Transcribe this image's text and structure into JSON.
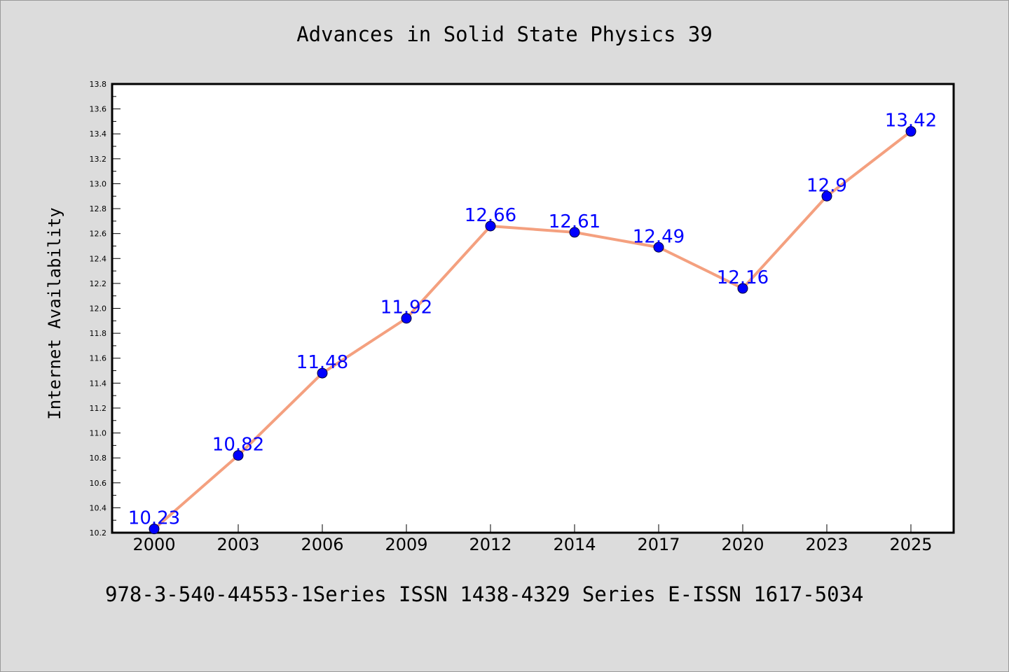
{
  "chart_data": {
    "type": "line",
    "title": "Advances in Solid State Physics 39",
    "xlabel": "",
    "ylabel": "Internet Availability",
    "categories": [
      "2000",
      "2003",
      "2006",
      "2009",
      "2012",
      "2014",
      "2017",
      "2020",
      "2023",
      "2025"
    ],
    "series": [
      {
        "values": [
          10.23,
          10.82,
          11.48,
          11.92,
          12.66,
          12.61,
          12.49,
          12.16,
          12.9,
          13.42
        ],
        "labels": [
          "10.23",
          "10.82",
          "11.48",
          "11.92",
          "12.66",
          "12.61",
          "12.49",
          "12.16",
          "12.9",
          "13.42"
        ],
        "line_color": "#f4a07f",
        "marker_color": "#0000ff"
      }
    ],
    "ylim": [
      10.2,
      13.8
    ],
    "yticks": [
      "10.2",
      "10.4",
      "10.6",
      "10.8",
      "11.0",
      "11.2",
      "11.4",
      "11.6",
      "11.8",
      "12.0",
      "12.2",
      "12.4",
      "12.6",
      "12.8",
      "13.0",
      "13.2",
      "13.4",
      "13.6",
      "13.8"
    ],
    "grid": false,
    "legend": "none",
    "label_color": "#0000ff"
  },
  "footer": "978-3-540-44553-1Series ISSN 1438-4329 Series E-ISSN 1617-5034"
}
